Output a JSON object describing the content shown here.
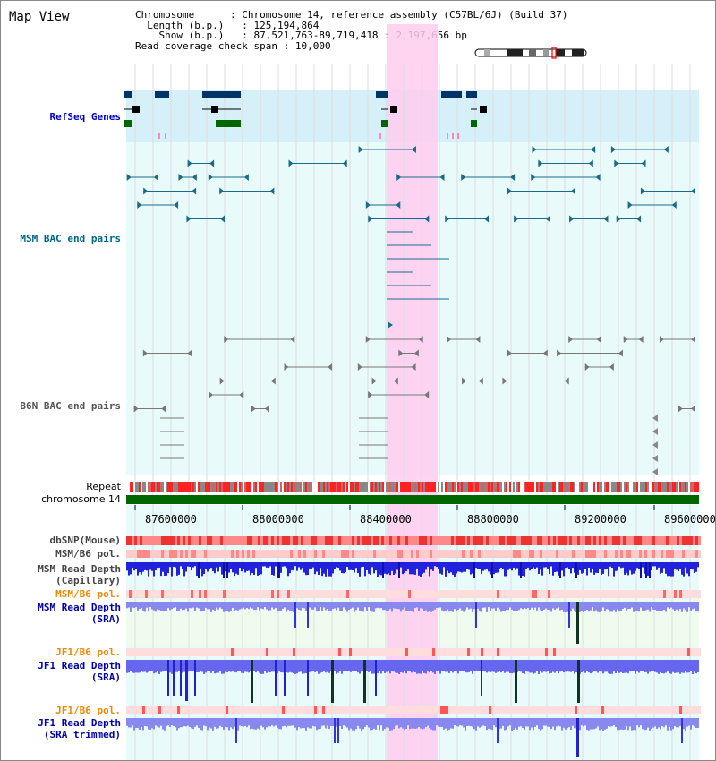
{
  "page_title": "Map View",
  "info": {
    "chromosome_key": "Chromosome",
    "chromosome_value": "Chromosome 14, reference assembly (C57BL/6J) (Build 37)",
    "length_key": "Length (b.p.)",
    "length_value": "125,194,864",
    "show_key": "Show (b.p.)",
    "show_value": "87,521,763-89,719,418 : 2,197,656 bp",
    "span_key": "Read coverage check span",
    "span_value": "10,000"
  },
  "axis": {
    "ticks": [
      "87600000",
      "88000000",
      "88400000",
      "88800000",
      "89200000",
      "89600000"
    ]
  },
  "tracks": {
    "refseq": "RefSeq Genes",
    "msm_bac": "MSM BAC end pairs",
    "b6n_bac": "B6N BAC end pairs",
    "repeat": "Repeat",
    "chromosome": "chromosome 14",
    "dbsnp": "dbSNP(Mouse)",
    "msm_b6_pol_1": "MSM/B6 pol.",
    "msm_depth_cap_1": "MSM Read Depth",
    "msm_depth_cap_2": "(Capillary)",
    "msm_b6_pol_2": "MSM/B6 pol.",
    "msm_depth_sra_1": "MSM Read Depth",
    "msm_depth_sra_2": "(SRA)",
    "jf1_b6_pol_1": "JF1/B6 pol.",
    "jf1_depth_sra_1": "JF1 Read Depth",
    "jf1_depth_sra_2": "(SRA)",
    "jf1_b6_pol_2": "JF1/B6 pol.",
    "jf1_depth_trim_1": "JF1 Read Depth",
    "jf1_depth_trim_2": "(SRA trimmed)"
  },
  "colors": {
    "refseq_label": "#0000cc",
    "msm_bac_label": "#006688",
    "b6n_label": "#444444",
    "pol_label": "#ee8800",
    "depth_label": "#0000aa",
    "highlight": "#ffccee",
    "chromosome_bar": "#006600"
  }
}
